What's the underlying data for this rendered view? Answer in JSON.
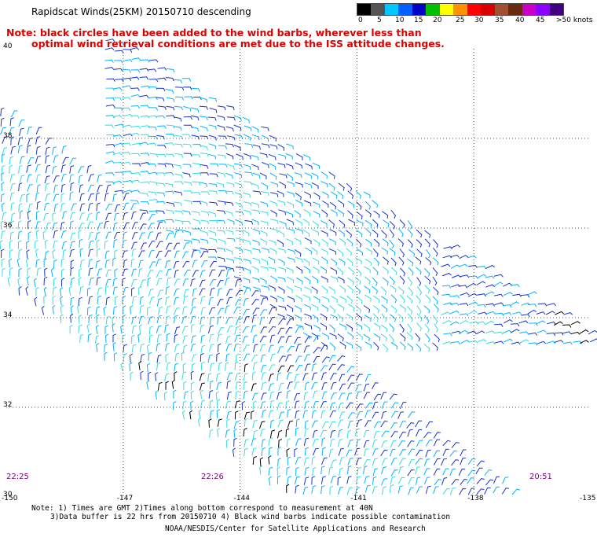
{
  "header": {
    "title": "Rapidscat Winds(25KM) 20150710 descending",
    "note_line1": "Note: black circles have been added to the wind barbs, wherever less than",
    "note_line2": "optimal wind retrieval conditions are met due to the ISS attitude changes."
  },
  "color_scale": {
    "labels": [
      "0",
      "5",
      "10",
      "15",
      "20",
      "25",
      "30",
      "35",
      "40",
      "45",
      ">50 knots"
    ],
    "colors": [
      "#000000",
      "#555555",
      "#00c8ff",
      "#0060ff",
      "#0000c8",
      "#00c000",
      "#ffff00",
      "#ff9000",
      "#ff0000",
      "#d80000",
      "#a05030",
      "#6a2a10",
      "#c800c8",
      "#8c00ff",
      "#400080"
    ]
  },
  "map": {
    "lat_labels": [
      "40",
      "38",
      "36",
      "34",
      "32",
      "30"
    ],
    "lon_labels": [
      "-150",
      "-147",
      "-144",
      "-141",
      "-138",
      "-135"
    ],
    "pass_times": [
      "22:25",
      "22:26",
      "20:51"
    ],
    "lat_range": [
      30,
      40
    ],
    "lon_range": [
      -150,
      -135
    ],
    "grid": true,
    "barb_colors": {
      "light": "#33dddd",
      "mid": "#00b4ff",
      "dark": "#1a33cc",
      "green": "#22cc22",
      "contaminated": "#000000"
    }
  },
  "footer": {
    "line1": "Note: 1) Times are GMT 2)Times along bottom correspond to measurement at 40N",
    "line2": "3)Data buffer is 22 hrs from 20150710 4) Black wind barbs indicate possible contamination",
    "line3": "NOAA/NESDIS/Center for Satellite Applications and Research"
  }
}
